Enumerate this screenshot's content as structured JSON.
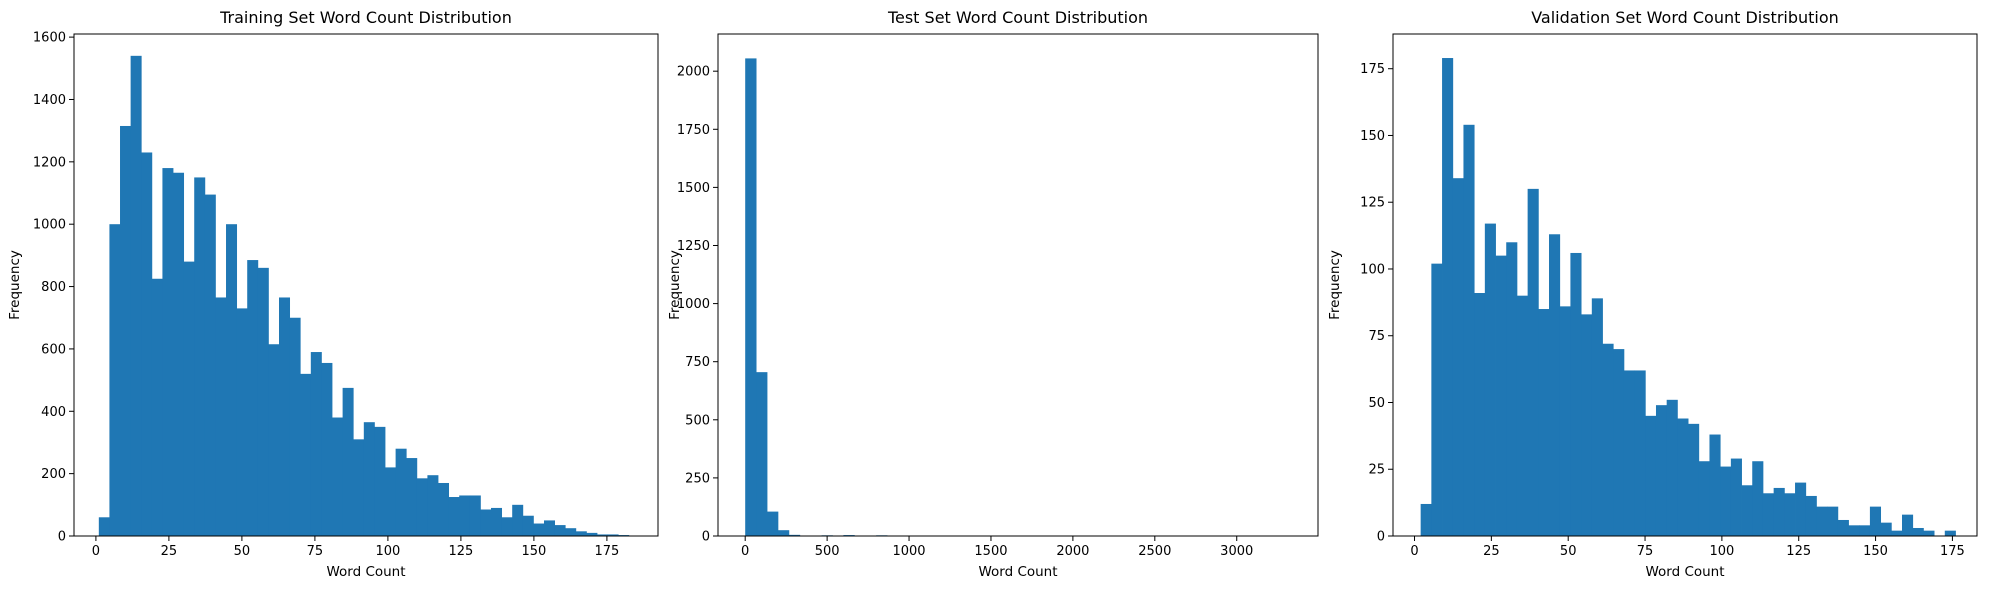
{
  "chart_data": [
    {
      "type": "bar",
      "title": "Training Set Word Count Distribution",
      "xlabel": "Word Count",
      "ylabel": "Frequency",
      "xlim": [
        -7.5,
        192.5
      ],
      "ylim": [
        0,
        1610
      ],
      "xticks": [
        0,
        25,
        50,
        75,
        100,
        125,
        150,
        175
      ],
      "yticks": [
        0,
        200,
        400,
        600,
        800,
        1000,
        1200,
        1400,
        1600
      ],
      "bin_width": 3.63,
      "bin_start": 1,
      "values": [
        60,
        1000,
        1315,
        1540,
        1230,
        825,
        1180,
        1165,
        880,
        1150,
        1095,
        765,
        1000,
        730,
        885,
        860,
        615,
        765,
        700,
        520,
        590,
        555,
        380,
        475,
        310,
        365,
        350,
        220,
        280,
        250,
        185,
        195,
        170,
        125,
        130,
        130,
        85,
        90,
        60,
        100,
        65,
        40,
        50,
        35,
        25,
        15,
        10,
        5,
        5,
        3
      ],
      "color": "#1f77b4"
    },
    {
      "type": "bar",
      "title": "Test Set Word Count Distribution",
      "xlabel": "Word Count",
      "ylabel": "Frequency",
      "xlim": [
        -166,
        3496
      ],
      "ylim": [
        0,
        2160
      ],
      "xticks": [
        0,
        500,
        1000,
        1500,
        2000,
        2500,
        3000
      ],
      "yticks": [
        0,
        250,
        500,
        750,
        1000,
        1250,
        1500,
        1750,
        2000
      ],
      "bin_width": 66.6,
      "bin_start": 0,
      "values": [
        2055,
        705,
        105,
        25,
        5,
        2,
        1,
        3,
        2,
        4,
        2,
        1,
        3,
        1,
        0,
        1,
        1,
        0,
        2,
        0,
        0,
        0,
        0,
        0,
        0,
        0,
        0,
        0,
        0,
        0,
        0,
        0,
        0,
        0,
        0,
        0,
        0,
        0,
        0,
        0,
        0,
        0,
        0,
        0,
        0,
        0,
        0,
        0,
        0,
        2
      ],
      "color": "#1f77b4"
    },
    {
      "type": "bar",
      "title": "Validation Set Word Count Distribution",
      "xlabel": "Word Count",
      "ylabel": "Frequency",
      "xlim": [
        -7,
        183
      ],
      "ylim": [
        0,
        188
      ],
      "xticks": [
        0,
        25,
        50,
        75,
        100,
        125,
        150,
        175
      ],
      "yticks": [
        0,
        25,
        50,
        75,
        100,
        125,
        150,
        175
      ],
      "bin_width": 3.48,
      "bin_start": 2,
      "values": [
        12,
        102,
        179,
        134,
        154,
        91,
        117,
        105,
        110,
        90,
        130,
        85,
        113,
        86,
        106,
        83,
        89,
        72,
        70,
        62,
        62,
        45,
        49,
        51,
        44,
        42,
        28,
        38,
        26,
        29,
        19,
        28,
        16,
        18,
        16,
        20,
        15,
        11,
        11,
        6,
        4,
        4,
        11,
        5,
        2,
        8,
        3,
        2,
        0,
        2
      ],
      "color": "#1f77b4"
    }
  ]
}
